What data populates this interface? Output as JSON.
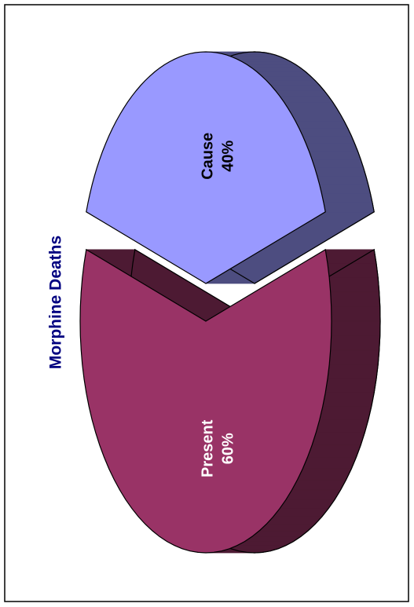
{
  "chart_data": {
    "type": "pie",
    "title": "Morphine Deaths",
    "categories": [
      "Present",
      "Cause"
    ],
    "values": [
      60,
      40
    ],
    "value_labels": [
      "60%",
      "40%"
    ],
    "colors": [
      "#993366",
      "#9999ff"
    ]
  }
}
